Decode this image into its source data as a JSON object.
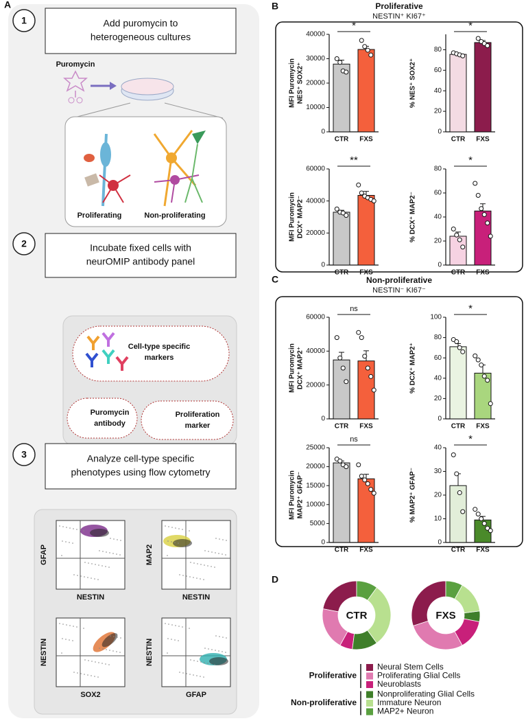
{
  "panel_labels": [
    "A",
    "B",
    "C",
    "D"
  ],
  "panel_a": {
    "steps": [
      {
        "number": "1",
        "lines": [
          "Add puromycin to",
          "heterogeneous cultures"
        ]
      },
      {
        "number": "2",
        "lines": [
          "Incubate fixed cells with",
          "neurOMIP antibody panel"
        ]
      },
      {
        "number": "3",
        "lines": [
          "Analyze cell-type specific",
          "phenotypes using flow cytometry"
        ]
      }
    ],
    "puromycin": "Puromycin",
    "cell_types": [
      "Proliferating",
      "Non-proliferating"
    ],
    "antibodies": {
      "markers": [
        "Cell-type specific",
        "markers"
      ],
      "puromycin": [
        "Puromycin",
        "antibody"
      ],
      "proliferation": [
        "Proliferation",
        "marker"
      ]
    },
    "flow_plots": [
      {
        "y": "GFAP",
        "x": "NESTIN"
      },
      {
        "y": "MAP2",
        "x": "NESTIN"
      },
      {
        "y": "NESTIN",
        "x": "SOX2"
      },
      {
        "y": "NESTIN",
        "x": "GFAP"
      }
    ]
  },
  "panel_b": {
    "title": "Proliferative",
    "subtitle": "NESTIN⁺ KI67⁺"
  },
  "panel_c": {
    "title": "Non-proliferative",
    "subtitle": "NESTIN⁻ KI67⁻"
  },
  "chart_data": [
    {
      "type": "bar",
      "ylabel": [
        "MFI Puromycin",
        "NES⁺ SOX2⁺"
      ],
      "categories": [
        "CTR",
        "FXS"
      ],
      "values": [
        27800,
        33800
      ],
      "errors": [
        1600,
        1300
      ],
      "points": [
        [
          30000,
          28500,
          25000,
          24500
        ],
        [
          37500,
          35000,
          33500,
          31500
        ]
      ],
      "colors": [
        "#c8c8c8",
        "#f4603c"
      ],
      "ylim": [
        0,
        40000
      ],
      "yticks": [
        0,
        10000,
        20000,
        30000,
        40000
      ],
      "significance": "*"
    },
    {
      "type": "bar",
      "ylabel": [
        "% NES⁺ SOX2⁺"
      ],
      "categories": [
        "CTR",
        "FXS"
      ],
      "values": [
        75.5,
        87
      ],
      "errors": [
        1,
        2
      ],
      "points": [
        [
          77,
          76,
          75,
          74
        ],
        [
          91,
          88,
          86,
          84
        ]
      ],
      "colors": [
        "#f3dbe3",
        "#8c1c4c"
      ],
      "ylim": [
        0,
        95
      ],
      "yticks": [
        0,
        20,
        40,
        60,
        80
      ],
      "significance": "*"
    },
    {
      "type": "bar",
      "ylabel": [
        "MFI Puromycin",
        "DCX⁺ MAP2⁻"
      ],
      "categories": [
        "CTR",
        "FXS"
      ],
      "values": [
        33000,
        43500
      ],
      "errors": [
        1200,
        2500
      ],
      "points": [
        [
          35000,
          33000,
          32500,
          31000
        ],
        [
          50000,
          45000,
          43000,
          42000,
          41000,
          40000
        ]
      ],
      "colors": [
        "#c8c8c8",
        "#f4603c"
      ],
      "ylim": [
        0,
        60000
      ],
      "yticks": [
        0,
        20000,
        40000,
        60000
      ],
      "significance": "**"
    },
    {
      "type": "bar",
      "ylabel": [
        "% DCX⁺ MAP2⁻"
      ],
      "categories": [
        "CTR",
        "FXS"
      ],
      "values": [
        24,
        45
      ],
      "errors": [
        3.5,
        6
      ],
      "points": [
        [
          30,
          25,
          21,
          15
        ],
        [
          68,
          58,
          47,
          42,
          35,
          24
        ]
      ],
      "colors": [
        "#f6d2e2",
        "#c8207a"
      ],
      "ylim": [
        0,
        80
      ],
      "yticks": [
        0,
        20,
        40,
        60,
        80
      ],
      "significance": "*"
    },
    {
      "type": "bar",
      "ylabel": [
        "MFI Puromycin",
        "DCX⁺ MAP2⁺"
      ],
      "categories": [
        "CTR",
        "FXS"
      ],
      "values": [
        34800,
        34200
      ],
      "errors": [
        4500,
        6000
      ],
      "points": [
        [
          48000,
          36000,
          30000,
          22000
        ],
        [
          51000,
          48000,
          37000,
          30000,
          25000,
          17000
        ]
      ],
      "colors": [
        "#c8c8c8",
        "#f4603c"
      ],
      "ylim": [
        0,
        60000
      ],
      "yticks": [
        0,
        20000,
        40000,
        60000
      ],
      "significance": "ns"
    },
    {
      "type": "bar",
      "ylabel": [
        "% DCX⁺ MAP2⁺"
      ],
      "categories": [
        "CTR",
        "FXS"
      ],
      "values": [
        71,
        45
      ],
      "errors": [
        3,
        8
      ],
      "points": [
        [
          78,
          76,
          70,
          66
        ],
        [
          62,
          58,
          53,
          42,
          38,
          15
        ]
      ],
      "colors": [
        "#eaf4e2",
        "#a9d67e"
      ],
      "ylim": [
        0,
        100
      ],
      "yticks": [
        0,
        20,
        40,
        60,
        80,
        100
      ],
      "significance": "*"
    },
    {
      "type": "bar",
      "ylabel": [
        "MFI Puromycin",
        "MAP2⁺ GFAP⁻"
      ],
      "categories": [
        "CTR",
        "FXS"
      ],
      "values": [
        21000,
        16800
      ],
      "errors": [
        500,
        1200
      ],
      "points": [
        [
          22000,
          21500,
          20500,
          20000
        ],
        [
          20500,
          17500,
          16500,
          15500,
          14000,
          13000
        ]
      ],
      "colors": [
        "#c8c8c8",
        "#f4603c"
      ],
      "ylim": [
        0,
        25000
      ],
      "yticks": [
        0,
        5000,
        10000,
        15000,
        20000,
        25000
      ],
      "significance": "ns"
    },
    {
      "type": "bar",
      "ylabel": [
        "% MAP2⁺ GFAP⁻"
      ],
      "categories": [
        "CTR",
        "FXS"
      ],
      "values": [
        24,
        9.5
      ],
      "errors": [
        5,
        1.5
      ],
      "points": [
        [
          37,
          29,
          21,
          13
        ],
        [
          14,
          12,
          10,
          8,
          6,
          5
        ]
      ],
      "colors": [
        "#e2eed9",
        "#4a8a2a"
      ],
      "ylim": [
        0,
        40
      ],
      "yticks": [
        0,
        10,
        20,
        30,
        40
      ],
      "significance": "*"
    },
    {
      "type": "pie",
      "title": "CTR",
      "categories": [
        "Neural Stem Cells",
        "Proliferating Glial Cells",
        "Neuroblasts",
        "Nonproliferating Glial Cells",
        "Immature Neuron",
        "MAP2+ Neuron"
      ],
      "colors": [
        "#8c1c4c",
        "#e07ab0",
        "#c8207a",
        "#3f7f2a",
        "#b8e08f",
        "#5aa040"
      ],
      "values": [
        22,
        20,
        6,
        12,
        30,
        10
      ]
    },
    {
      "type": "pie",
      "title": "FXS",
      "categories": [
        "Neural Stem Cells",
        "Proliferating Glial Cells",
        "Neuroblasts",
        "Nonproliferating Glial Cells",
        "Immature Neuron",
        "MAP2+ Neuron"
      ],
      "colors": [
        "#8c1c4c",
        "#e07ab0",
        "#c8207a",
        "#3f7f2a",
        "#b8e08f",
        "#5aa040"
      ],
      "values": [
        30,
        28,
        14,
        5,
        15,
        8
      ]
    }
  ],
  "legend_groups": [
    {
      "name": "Proliferative",
      "entries": [
        "Neural Stem Cells",
        "Proliferating Glial Cells",
        "Neuroblasts"
      ]
    },
    {
      "name": "Non-proliferative",
      "entries": [
        "Nonproliferating Glial Cells",
        "Immature Neuron",
        "MAP2+ Neuron"
      ]
    }
  ]
}
